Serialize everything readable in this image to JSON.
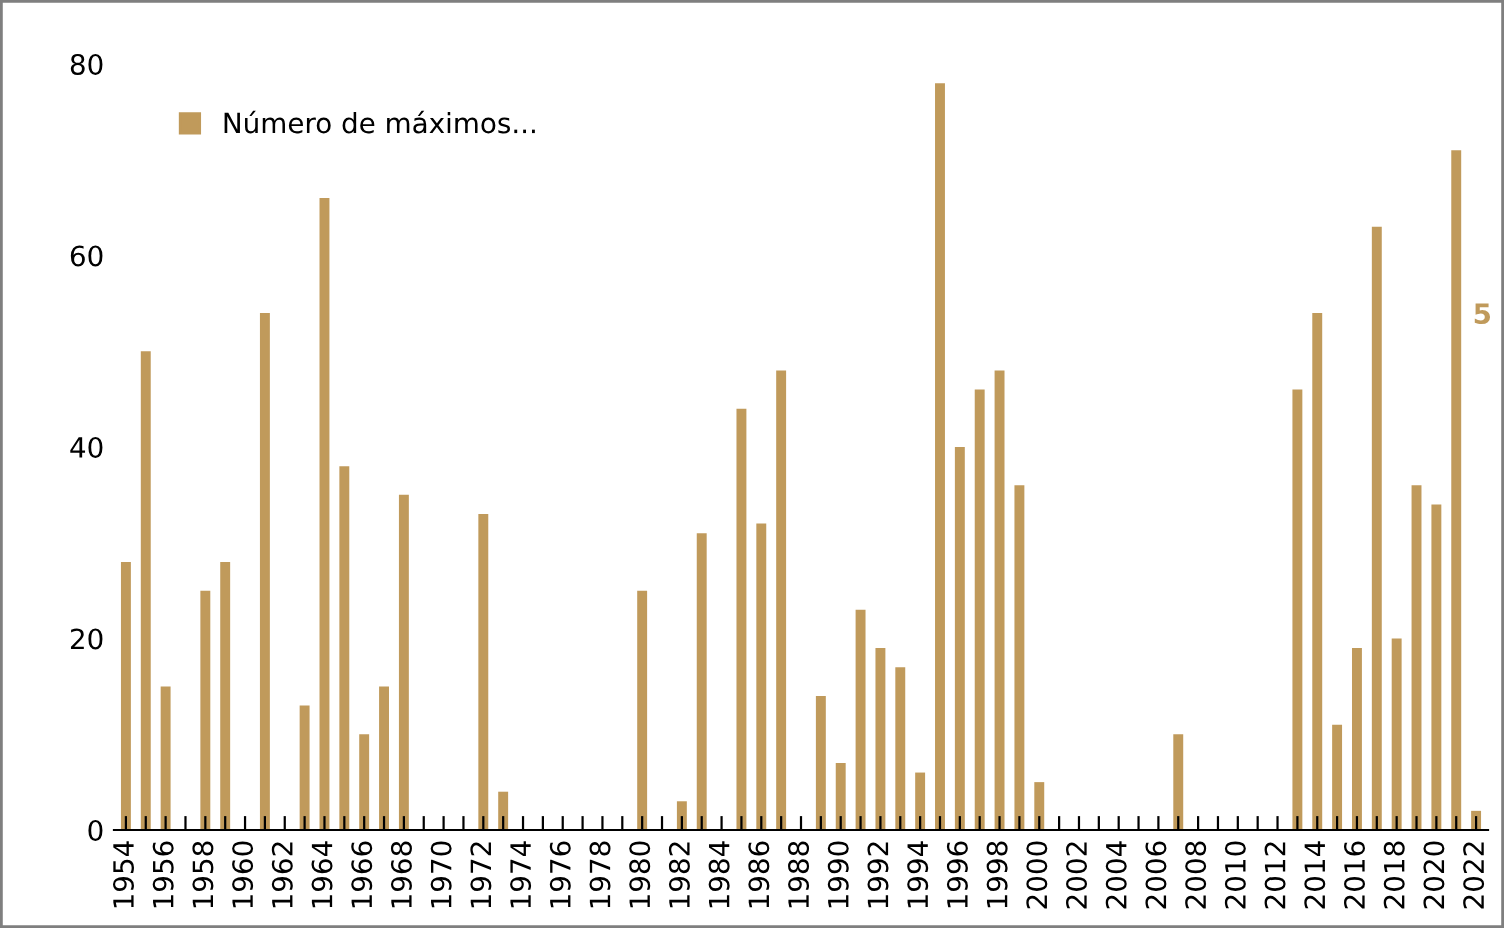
{
  "chart_data": {
    "type": "bar",
    "categories": [
      "1954",
      null,
      "1956",
      null,
      "1958",
      null,
      "1960",
      null,
      "1962",
      null,
      "1964",
      null,
      "1966",
      null,
      "1968",
      null,
      "1970",
      null,
      "1972",
      null,
      "1974",
      null,
      "1976",
      null,
      "1978",
      null,
      "1980",
      null,
      "1982",
      null,
      "1984",
      null,
      "1986",
      null,
      "1988",
      null,
      "1990",
      null,
      "1992",
      null,
      "1994",
      null,
      "1996",
      null,
      "1998",
      null,
      "2000",
      null,
      "2002",
      null,
      "2004",
      null,
      "2006",
      null,
      "2008",
      null,
      "2010",
      null,
      "2012",
      null,
      "2014",
      null,
      "2016",
      null,
      "2018",
      null,
      "2020",
      null,
      "2022"
    ],
    "series": [
      {
        "name": "Número de máximos...",
        "color": "#c09a5b",
        "values": [
          28,
          50,
          15,
          0,
          25,
          28,
          0,
          54,
          0,
          13,
          66,
          38,
          10,
          15,
          35,
          0,
          0,
          0,
          33,
          4,
          0,
          0,
          0,
          0,
          0,
          0,
          25,
          0,
          3,
          31,
          0,
          44,
          32,
          48,
          0,
          14,
          7,
          23,
          19,
          17,
          6,
          78,
          40,
          46,
          48,
          36,
          5,
          0,
          0,
          0,
          0,
          0,
          0,
          10,
          0,
          0,
          0,
          0,
          0,
          46,
          54,
          11,
          19,
          63,
          20,
          36,
          34,
          71,
          2
        ]
      }
    ],
    "ylim": [
      0,
      80
    ],
    "yticks": [
      0,
      20,
      40,
      60,
      80
    ],
    "grid": false,
    "legend": "top left",
    "annotations": [
      "5"
    ]
  }
}
